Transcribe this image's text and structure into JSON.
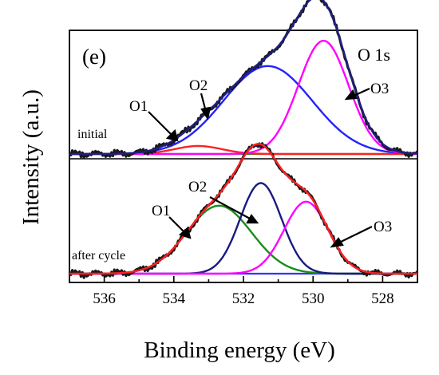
{
  "chart_data": {
    "type": "line",
    "panel_label": "(e)",
    "corner_label": "O 1s",
    "xlabel": "Binding energy (eV)",
    "ylabel": "Intensity (a.u.)",
    "xlim": [
      537,
      527
    ],
    "x_reversed": true,
    "xticks": [
      536,
      534,
      532,
      530,
      528
    ],
    "y_ticks_shown": false,
    "colors": {
      "data": "#1a1a1a",
      "envelope": "#1f1f80",
      "envelope_after": "#ff2020",
      "O1_initial": "#ff2020",
      "O2_initial": "#2222ff",
      "O3": "#ff00ff",
      "O1_after": "#1a8c1a",
      "O2_after": "#1a1a80",
      "background": "#1a8c1a",
      "baseline_after": "#3333ff"
    },
    "panels": [
      {
        "id": "initial",
        "label": "initial",
        "peaks": [
          {
            "name": "O1",
            "center": 533.3,
            "fwhm": 1.6,
            "height": 0.06
          },
          {
            "name": "O2",
            "center": 531.3,
            "fwhm": 3.0,
            "height": 0.66
          },
          {
            "name": "O3",
            "center": 529.7,
            "fwhm": 1.7,
            "height": 0.85
          }
        ],
        "annotations": [
          "O1",
          "O2",
          "O3"
        ]
      },
      {
        "id": "after",
        "label": "after cycle",
        "peaks": [
          {
            "name": "O1",
            "center": 532.7,
            "fwhm": 2.2,
            "height": 0.51
          },
          {
            "name": "O2",
            "center": 531.5,
            "fwhm": 1.4,
            "height": 0.68
          },
          {
            "name": "O3",
            "center": 530.2,
            "fwhm": 1.5,
            "height": 0.54
          }
        ],
        "annotations": [
          "O1",
          "O2",
          "O3"
        ]
      }
    ]
  }
}
